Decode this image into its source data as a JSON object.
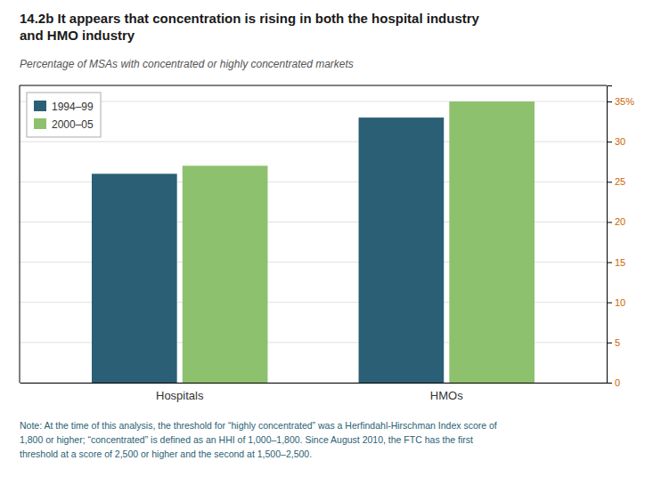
{
  "chart_data": {
    "type": "bar",
    "title": "14.2b It appears that concentration is rising in both the hospital industry\nand HMO industry",
    "subtitle": "Percentage of MSAs with concentrated or highly concentrated markets",
    "note": "Note: At the time of this analysis, the threshold for “highly concentrated” was a Herfindahl-Hirschman Index score of\n1,800 or higher; “concentrated” is defined as an HHI of 1,000–1,800. Since August 2010, the FTC has the first\nthreshold at a score of 2,500 or higher and the second at 1,500–2,500.",
    "categories": [
      "Hospitals",
      "HMOs"
    ],
    "series": [
      {
        "name": "1994–99",
        "color": "#2b5f75",
        "values": [
          26,
          33
        ]
      },
      {
        "name": "2000–05",
        "color": "#8dc16e",
        "values": [
          27,
          35
        ]
      }
    ],
    "ylim": [
      0,
      37
    ],
    "yticks": [
      0,
      5,
      10,
      15,
      20,
      25,
      30,
      {
        "value": 35,
        "label": "35%"
      }
    ],
    "grid": true,
    "legend": "upper left"
  }
}
